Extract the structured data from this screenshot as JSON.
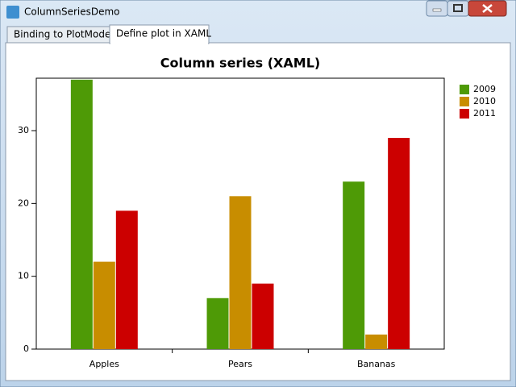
{
  "window": {
    "title": "ColumnSeriesDemo",
    "tabs": [
      "Binding to PlotModel",
      "Define plot in XAML"
    ]
  },
  "chart_data": {
    "type": "bar",
    "title": "Column series (XAML)",
    "categories": [
      "Apples",
      "Pears",
      "Bananas"
    ],
    "series": [
      {
        "name": "2009",
        "color": "#4e9a06",
        "values": [
          37,
          7,
          23
        ]
      },
      {
        "name": "2010",
        "color": "#c88d00",
        "values": [
          12,
          21,
          2
        ]
      },
      {
        "name": "2011",
        "color": "#cc0000",
        "values": [
          19,
          9,
          29
        ]
      }
    ],
    "ylim": [
      0,
      37.2
    ],
    "yticks": [
      0,
      10,
      20,
      30
    ],
    "legend": "top-right"
  }
}
